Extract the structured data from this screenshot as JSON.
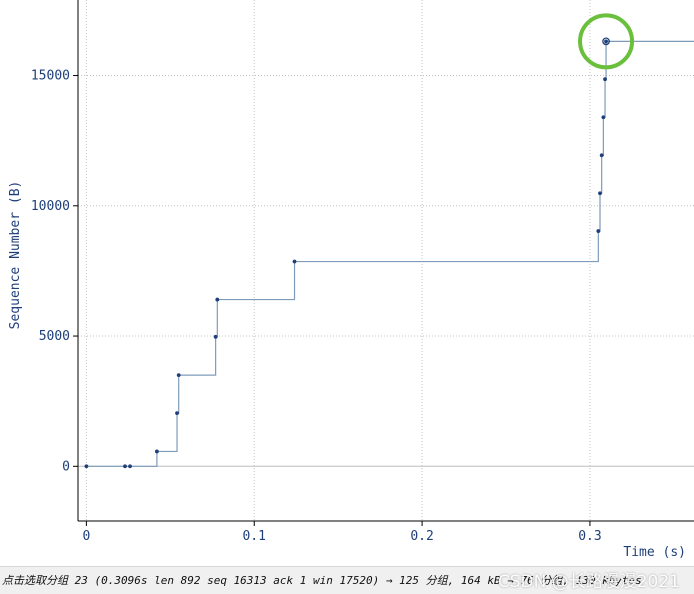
{
  "chart_data": {
    "type": "line",
    "step": true,
    "xlabel": "Time (s)",
    "ylabel": "Sequence Number (B)",
    "xlim": [
      -0.005,
      0.362
    ],
    "ylim": [
      -2100,
      17900
    ],
    "x_ticks": [
      0,
      0.1,
      0.2,
      0.3
    ],
    "x_tick_labels": [
      "0",
      "0.1",
      "0.2",
      "0.3"
    ],
    "y_ticks": [
      0,
      5000,
      10000,
      15000
    ],
    "y_tick_labels": [
      "0",
      "5000",
      "10000",
      "15000"
    ],
    "grid": true,
    "series": [
      {
        "x": [
          0,
          0.023,
          0.026,
          0.042,
          0.054,
          0.055,
          0.077,
          0.078,
          0.124,
          0.305,
          0.306,
          0.307,
          0.308,
          0.309,
          0.3096
        ],
        "y": [
          0,
          0,
          0,
          570,
          2040,
          3500,
          4970,
          6400,
          7860,
          9030,
          10480,
          11940,
          13400,
          14860,
          16313
        ],
        "color": "#1f3f7a",
        "line_color": "#7f9bb8"
      }
    ],
    "line_end_x": 0.362,
    "highlight": {
      "x": 0.3096,
      "y": 16313,
      "color": "#6abf3c"
    }
  },
  "status": {
    "text": "点击选取分组 23 (0.3096s len 892 seq 16313 ack 1 win 17520) → 125 分组, 164 kB → 76 分组, 130 kbytes"
  },
  "watermark": "CSDN @长路漫漫2021"
}
